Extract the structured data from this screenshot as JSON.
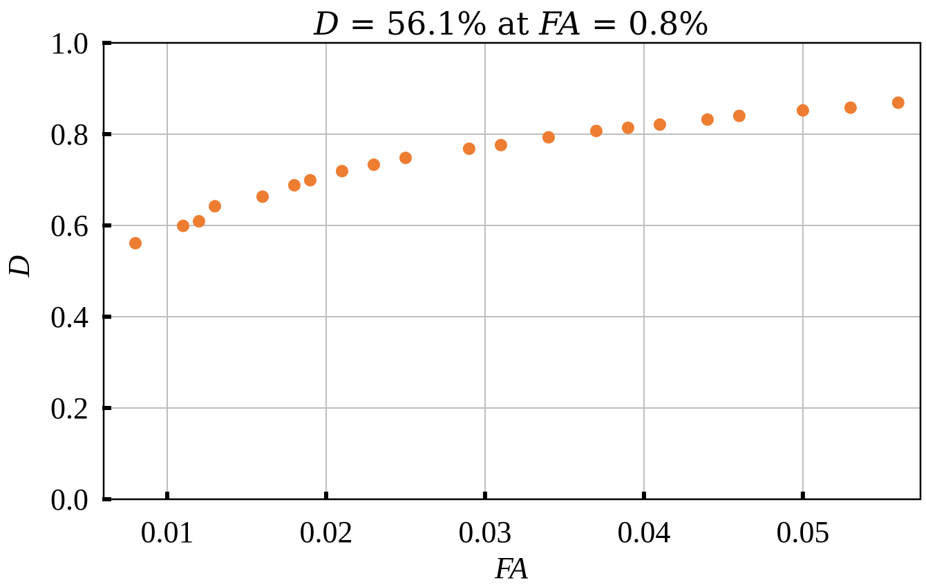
{
  "chart_data": {
    "type": "scatter",
    "title": {
      "d": "D",
      "eq1": " = 56.1% at ",
      "fa": "FA",
      "eq2": " = 0.8%"
    },
    "xlabel": "FA",
    "ylabel": "D",
    "xlim": [
      0.006,
      0.0574
    ],
    "ylim": [
      0.0,
      1.0
    ],
    "x_ticks": [
      0.01,
      0.02,
      0.03,
      0.04,
      0.05
    ],
    "x_tick_labels": [
      "0.01",
      "0.02",
      "0.03",
      "0.04",
      "0.05"
    ],
    "y_ticks": [
      0.0,
      0.2,
      0.4,
      0.6,
      0.8,
      1.0
    ],
    "y_tick_labels": [
      "0.0",
      "0.2",
      "0.4",
      "0.6",
      "0.8",
      "1.0"
    ],
    "grid": true,
    "marker_color": "#ED7D31",
    "series": [
      {
        "x": [
          0.008,
          0.011,
          0.012,
          0.013,
          0.016,
          0.018,
          0.019,
          0.021,
          0.023,
          0.025,
          0.029,
          0.031,
          0.034,
          0.037,
          0.039,
          0.041,
          0.044,
          0.046,
          0.05,
          0.053,
          0.056
        ],
        "y": [
          0.561,
          0.599,
          0.609,
          0.642,
          0.663,
          0.688,
          0.699,
          0.719,
          0.733,
          0.748,
          0.768,
          0.776,
          0.793,
          0.807,
          0.814,
          0.821,
          0.832,
          0.84,
          0.852,
          0.858,
          0.869
        ]
      }
    ]
  }
}
